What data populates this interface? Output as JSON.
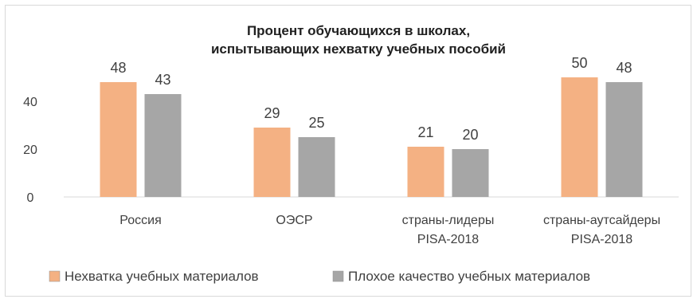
{
  "chart_data": {
    "type": "bar",
    "title_lines": [
      "Процент обучающихся в школах,",
      "испытывающих нехватку учебных пособий"
    ],
    "categories": [
      [
        "Россия"
      ],
      [
        "ОЭСР"
      ],
      [
        "страны-лидеры",
        "PISA-2018"
      ],
      [
        "страны-аутсайдеры",
        "PISA-2018"
      ]
    ],
    "series": [
      {
        "name": "Нехватка учебных материалов",
        "color": "#f4b183",
        "values": [
          48,
          29,
          21,
          50
        ]
      },
      {
        "name": "Плохое качество учебных материалов",
        "color": "#a6a6a6",
        "values": [
          43,
          25,
          20,
          48
        ]
      }
    ],
    "ylim": [
      0,
      55
    ],
    "yticks": [
      0,
      20,
      40
    ],
    "grid": false,
    "legend_position": "bottom",
    "xlabel": "",
    "ylabel": ""
  }
}
